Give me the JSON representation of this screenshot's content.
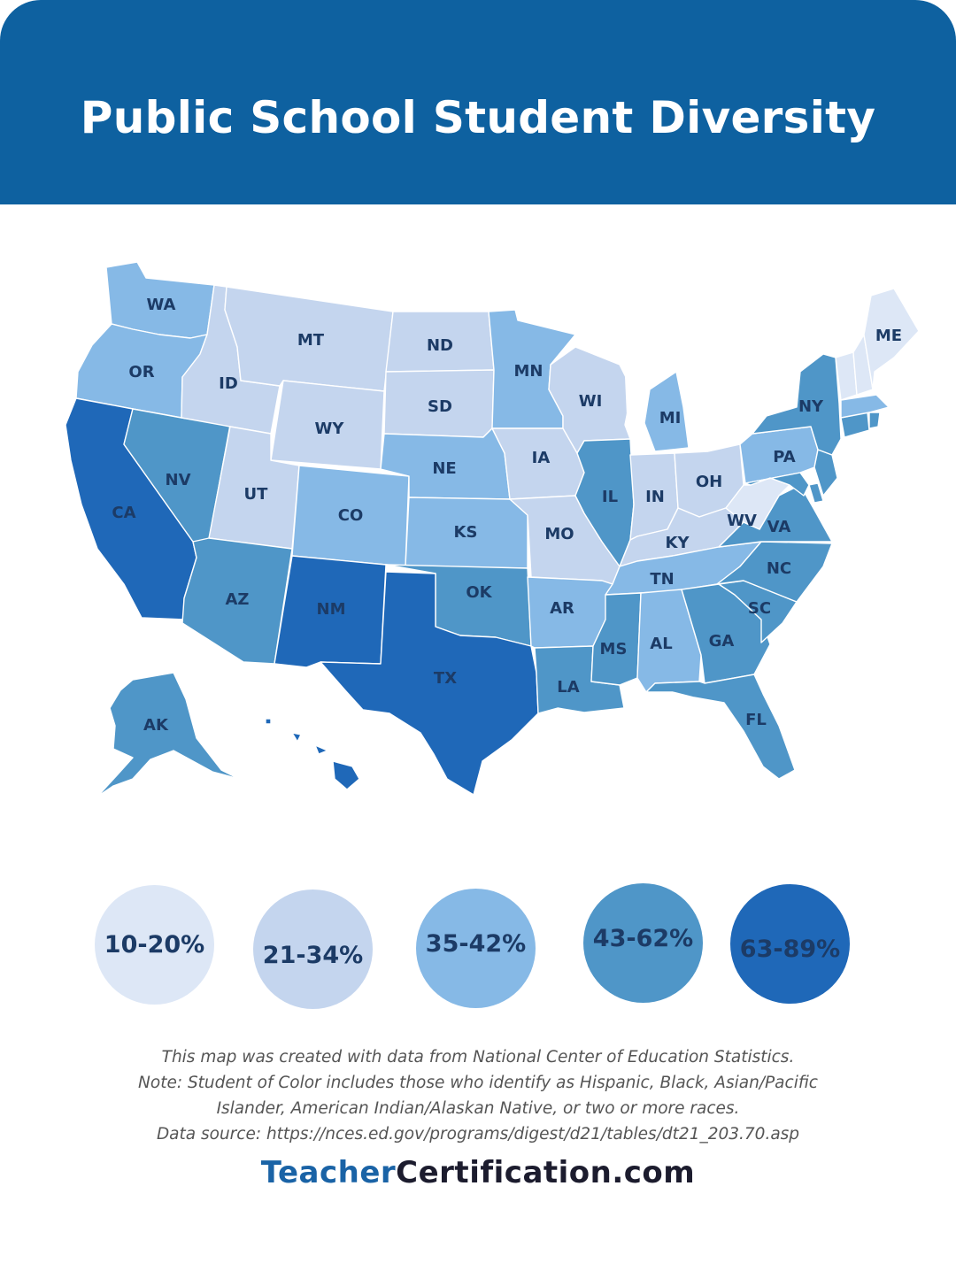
{
  "title": "Public School Student Diversity",
  "states": [
    {
      "code": "WA",
      "range": "35-42%"
    },
    {
      "code": "OR",
      "range": "35-42%"
    },
    {
      "code": "CA",
      "range": "63-89%"
    },
    {
      "code": "NV",
      "range": "43-62%"
    },
    {
      "code": "ID",
      "range": "21-34%"
    },
    {
      "code": "MT",
      "range": "21-34%"
    },
    {
      "code": "WY",
      "range": "21-34%"
    },
    {
      "code": "UT",
      "range": "21-34%"
    },
    {
      "code": "AZ",
      "range": "43-62%"
    },
    {
      "code": "CO",
      "range": "35-42%"
    },
    {
      "code": "NM",
      "range": "63-89%"
    },
    {
      "code": "ND",
      "range": "21-34%"
    },
    {
      "code": "SD",
      "range": "21-34%"
    },
    {
      "code": "NE",
      "range": "35-42%"
    },
    {
      "code": "KS",
      "range": "35-42%"
    },
    {
      "code": "OK",
      "range": "43-62%"
    },
    {
      "code": "TX",
      "range": "63-89%"
    },
    {
      "code": "MN",
      "range": "35-42%"
    },
    {
      "code": "IA",
      "range": "21-34%"
    },
    {
      "code": "MO",
      "range": "21-34%"
    },
    {
      "code": "AR",
      "range": "35-42%"
    },
    {
      "code": "LA",
      "range": "43-62%"
    },
    {
      "code": "WI",
      "range": "21-34%"
    },
    {
      "code": "IL",
      "range": "43-62%"
    },
    {
      "code": "MI",
      "range": "35-42%"
    },
    {
      "code": "IN",
      "range": "21-34%"
    },
    {
      "code": "OH",
      "range": "21-34%"
    },
    {
      "code": "KY",
      "range": "21-34%"
    },
    {
      "code": "TN",
      "range": "35-42%"
    },
    {
      "code": "MS",
      "range": "43-62%"
    },
    {
      "code": "AL",
      "range": "35-42%"
    },
    {
      "code": "GA",
      "range": "43-62%"
    },
    {
      "code": "FL",
      "range": "43-62%"
    },
    {
      "code": "SC",
      "range": "43-62%"
    },
    {
      "code": "NC",
      "range": "43-62%"
    },
    {
      "code": "VA",
      "range": "43-62%"
    },
    {
      "code": "WV",
      "range": "10-20%"
    },
    {
      "code": "PA",
      "range": "35-42%"
    },
    {
      "code": "NY",
      "range": "43-62%"
    },
    {
      "code": "ME",
      "range": "10-20%"
    },
    {
      "code": "AK",
      "range": "43-62%"
    }
  ],
  "colors": {
    "header": "#0e61a0",
    "bin_1": "#dde7f6",
    "bin_2": "#c4d5ee",
    "bin_3": "#86b9e6",
    "bin_4": "#4f96c8",
    "bin_5": "#1f68b8",
    "label": "#1c3b66",
    "brand_blue": "#1a63a6",
    "brand_dark": "#1c1c2e"
  },
  "legend": [
    {
      "label": "10-20%"
    },
    {
      "label": "21-34%"
    },
    {
      "label": "35-42%"
    },
    {
      "label": "43-62%"
    },
    {
      "label": "63-89%"
    }
  ],
  "notes": [
    "This map was created with data from National Center of Education Statistics.",
    "Note: Student of Color includes those who identify as Hispanic, Black, Asian/Pacific",
    "Islander, American Indian/Alaskan Native, or two or more races.",
    "Data source: https://nces.ed.gov/programs/digest/d21/tables/dt21_203.70.asp"
  ],
  "brand": {
    "part1": "Teacher",
    "part2": "Certification.com"
  }
}
